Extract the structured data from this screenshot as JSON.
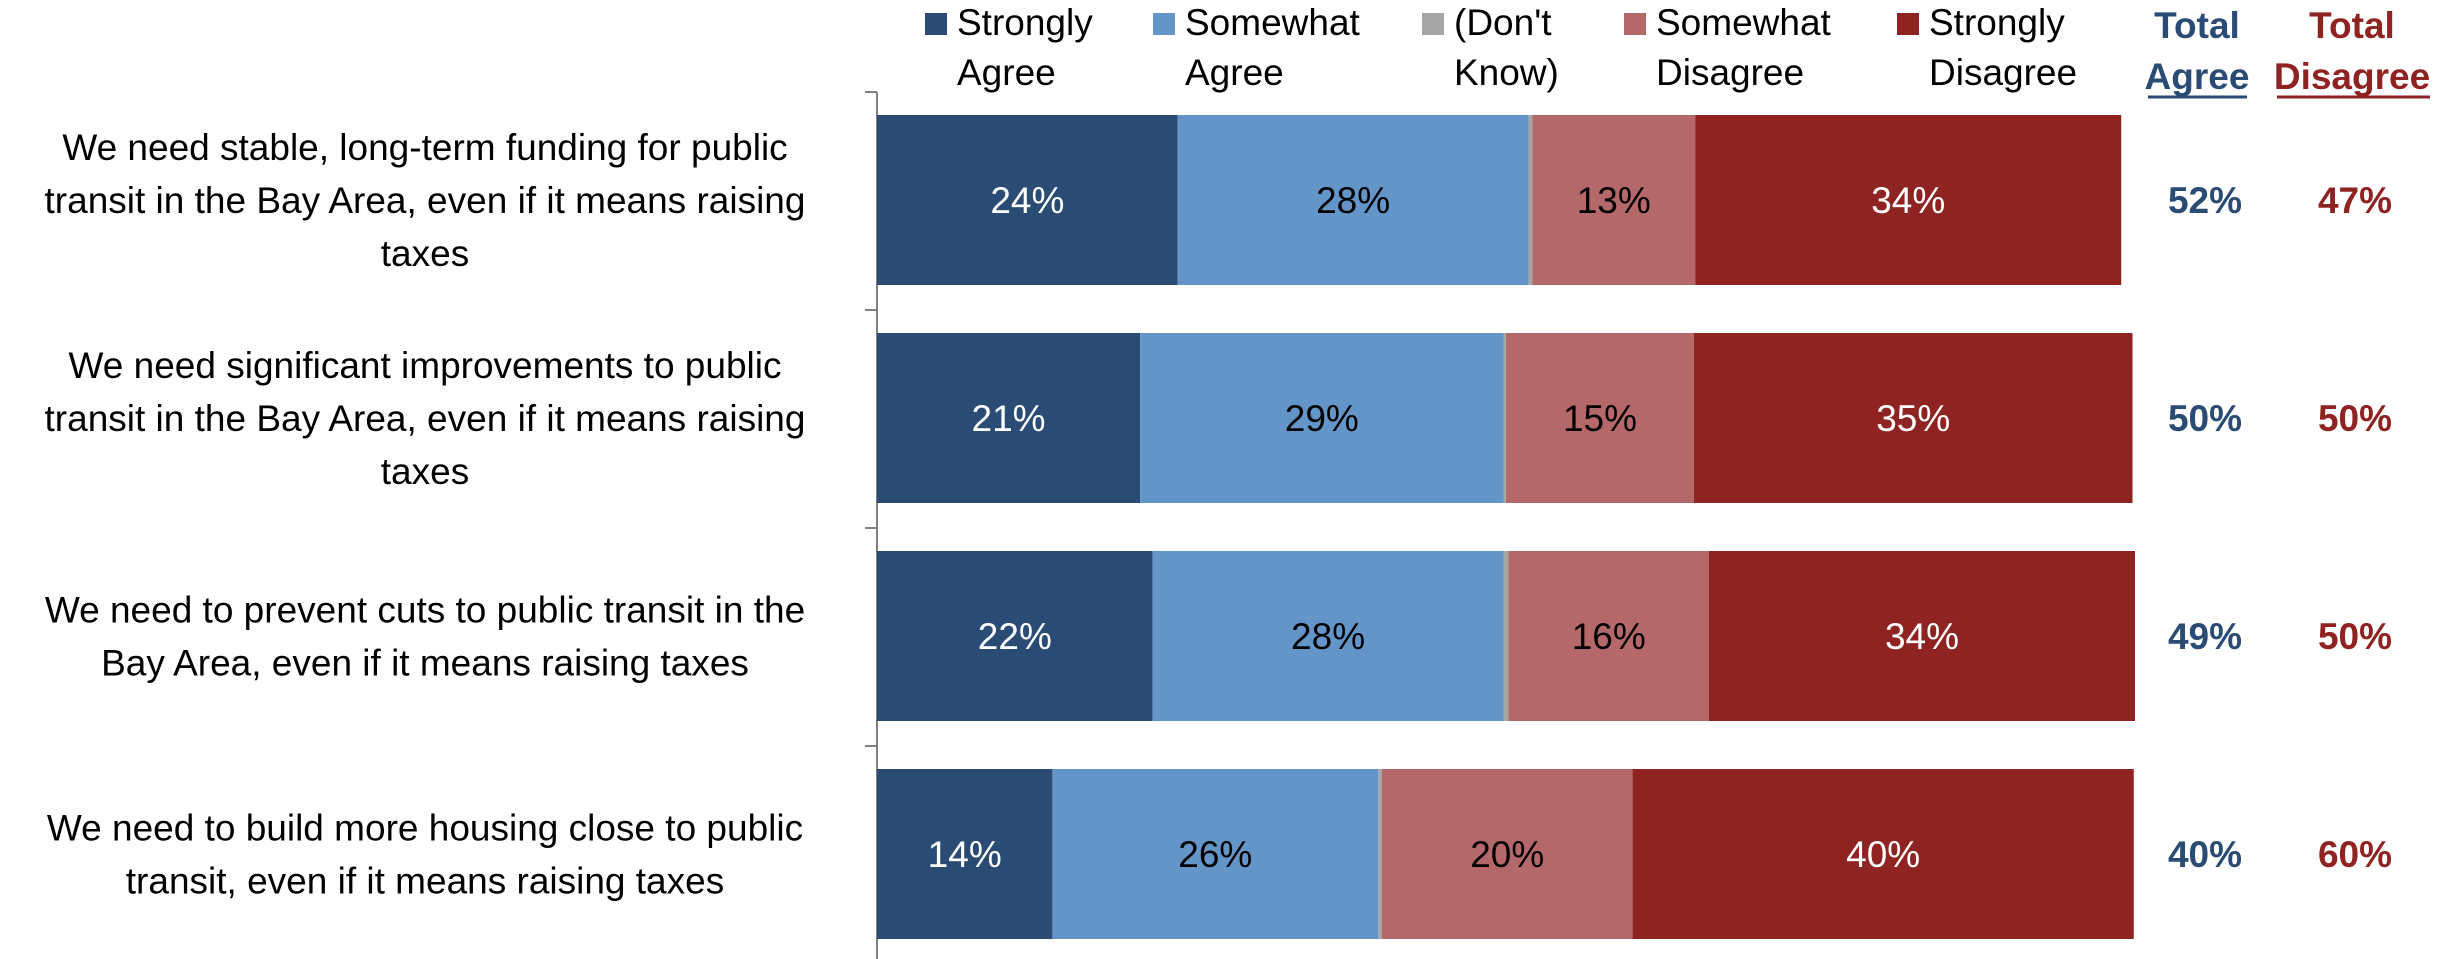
{
  "chart_data": {
    "type": "bar",
    "orientation": "horizontal",
    "stacked": true,
    "xlim": [
      0,
      100
    ],
    "legend_placement": "top",
    "categories": [
      [
        "We need stable, long-term funding for public",
        "transit in the Bay Area, even if it means raising",
        "taxes"
      ],
      [
        "We need significant improvements to public",
        "transit in the Bay Area, even if it means raising",
        "taxes"
      ],
      [
        "We need to prevent cuts to public transit in the",
        "Bay Area, even if it means raising taxes"
      ],
      [
        "We need to build more housing close to public",
        "transit, even if it means raising taxes"
      ]
    ],
    "series": [
      {
        "name": [
          "Strongly",
          "Agree"
        ],
        "color": "#2a4b74",
        "label_color": "#ffffff",
        "values": [
          24,
          21,
          22,
          14
        ]
      },
      {
        "name": [
          "Somewhat",
          "Agree"
        ],
        "color": "#6495c9",
        "label_color": "#000000",
        "values": [
          28,
          29,
          28,
          26
        ]
      },
      {
        "name": [
          "(Don't",
          "Know)"
        ],
        "color": "#a6a6a6",
        "label_color": "#000000",
        "values": [
          0.3,
          0.2,
          0.4,
          0.3
        ]
      },
      {
        "name": [
          "Somewhat",
          "Disagree"
        ],
        "color": "#b5686a",
        "label_color": "#000000",
        "values": [
          13,
          15,
          16,
          20
        ]
      },
      {
        "name": [
          "Strongly",
          "Disagree"
        ],
        "color": "#8e2322",
        "label_color": "#ffffff",
        "values": [
          34,
          35,
          34,
          40
        ]
      }
    ],
    "data_labels": [
      [
        "24%",
        "28%",
        "",
        "13%",
        "34%"
      ],
      [
        "21%",
        "29%",
        "",
        "15%",
        "35%"
      ],
      [
        "22%",
        "28%",
        "",
        "16%",
        "34%"
      ],
      [
        "14%",
        "26%",
        "",
        "20%",
        "40%"
      ]
    ],
    "totals": {
      "agree": {
        "header": [
          "Total",
          "Agree"
        ],
        "color": "#2a4b74",
        "labels": [
          "52%",
          "50%",
          "49%",
          "40%"
        ]
      },
      "disagree": {
        "header": [
          "Total",
          "Disagree"
        ],
        "color": "#8e2322",
        "labels": [
          "47%",
          "50%",
          "50%",
          "60%"
        ]
      }
    }
  }
}
